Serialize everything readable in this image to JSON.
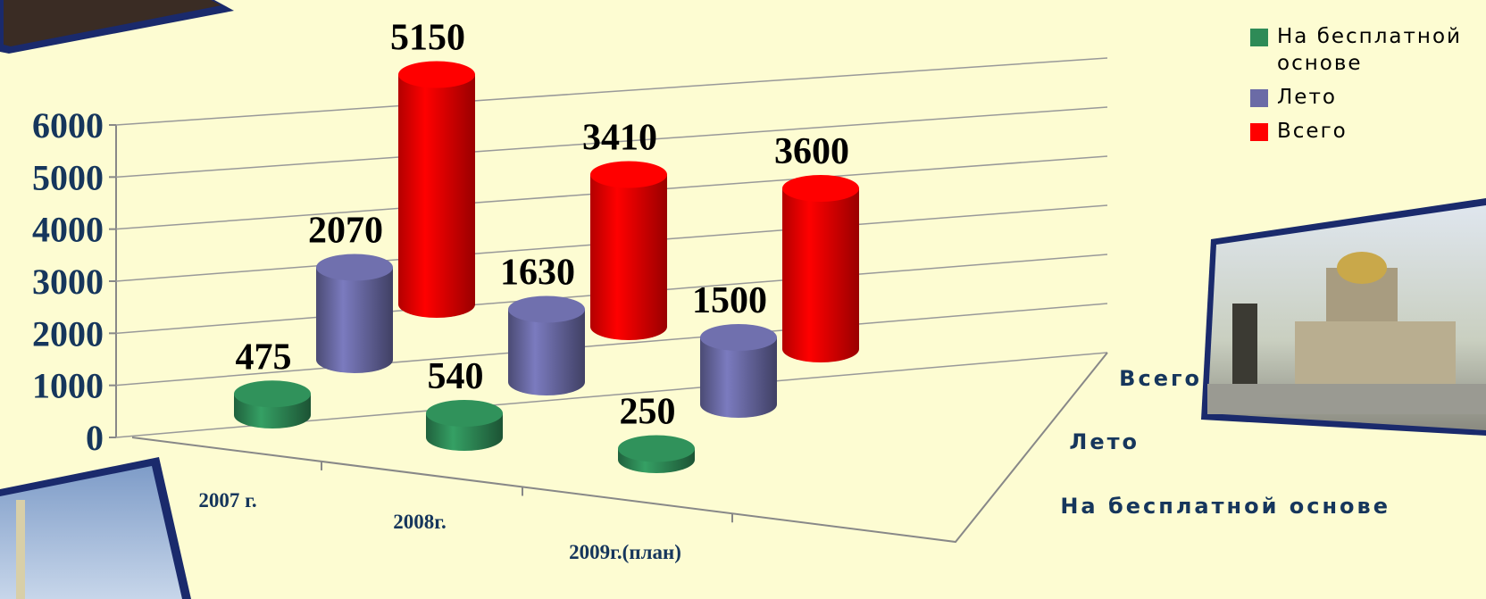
{
  "chart_data": {
    "type": "bar3d",
    "categories": [
      "2007 г.",
      "2008г.",
      "2009г.(план)"
    ],
    "series": [
      {
        "name": "На бесплатной основе",
        "color": "#2e8b57",
        "values": [
          475,
          540,
          250
        ]
      },
      {
        "name": "Лето",
        "color": "#6b6ba6",
        "values": [
          2070,
          1630,
          1500
        ]
      },
      {
        "name": "Всего",
        "color": "#ff0000",
        "values": [
          5150,
          3410,
          3600
        ]
      }
    ],
    "ylim": [
      0,
      6000
    ],
    "yticks": [
      0,
      1000,
      2000,
      3000,
      4000,
      5000,
      6000
    ],
    "grid": true
  }
}
